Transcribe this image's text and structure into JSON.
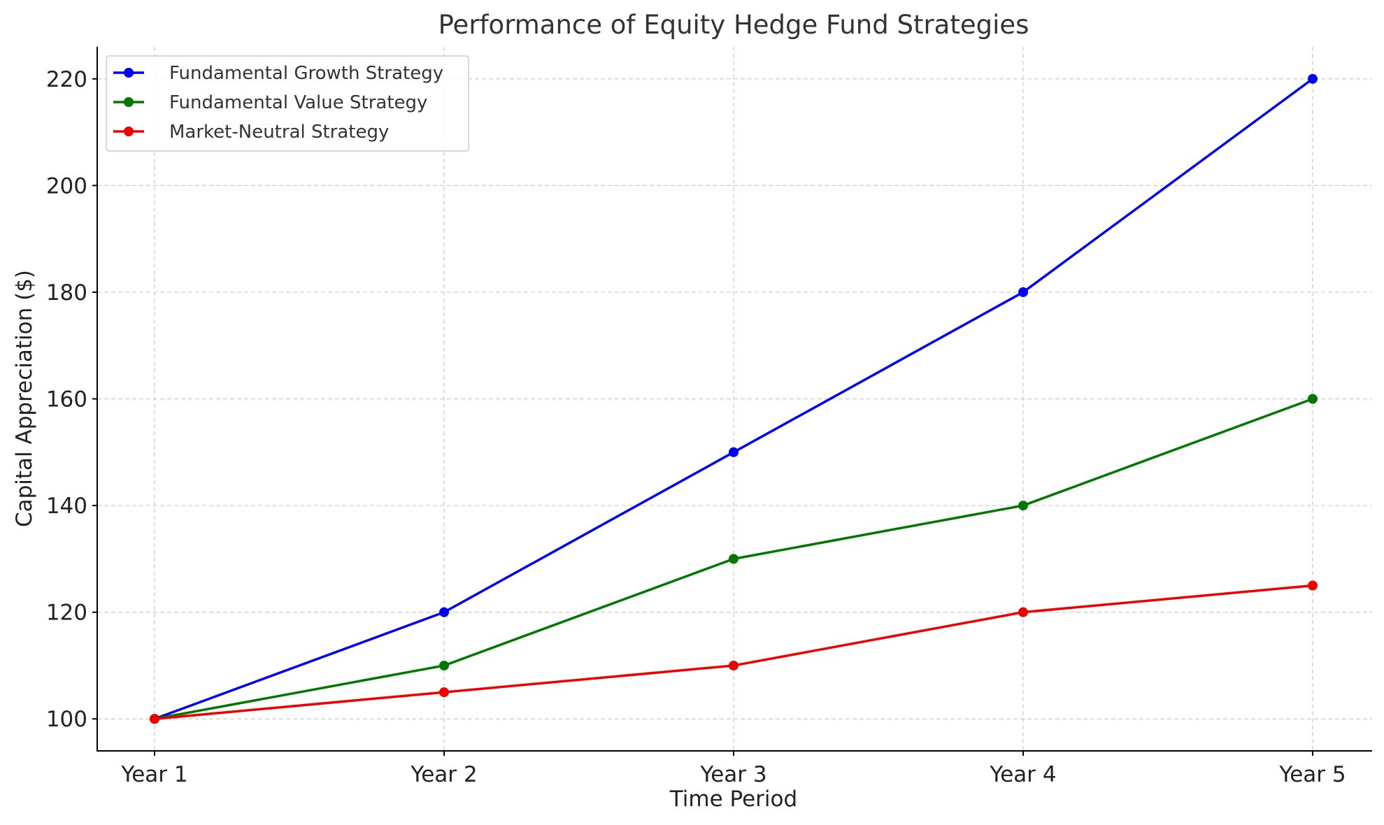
{
  "chart_data": {
    "type": "line",
    "title": "Performance of Equity Hedge Fund Strategies",
    "xlabel": "Time Period",
    "ylabel": "Capital Appreciation ($)",
    "categories": [
      "Year 1",
      "Year 2",
      "Year 3",
      "Year 4",
      "Year 5"
    ],
    "ylim": [
      94,
      226
    ],
    "yticks": [
      100,
      120,
      140,
      160,
      180,
      200,
      220
    ],
    "grid": true,
    "legend_position": "top-left",
    "series": [
      {
        "name": "Fundamental Growth Strategy",
        "color": "#0000ee",
        "values": [
          100,
          120,
          150,
          180,
          220
        ]
      },
      {
        "name": "Fundamental Value Strategy",
        "color": "#007800",
        "values": [
          100,
          110,
          130,
          140,
          160
        ]
      },
      {
        "name": "Market-Neutral Strategy",
        "color": "#ee0000",
        "values": [
          100,
          105,
          110,
          120,
          125
        ]
      }
    ]
  }
}
